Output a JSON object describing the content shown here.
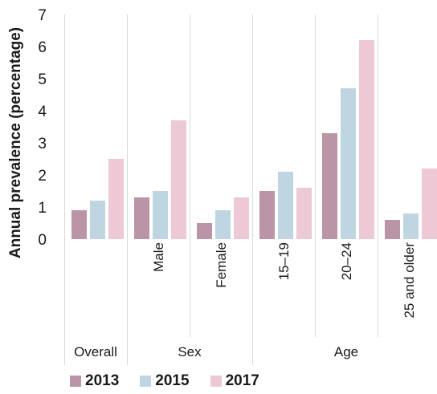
{
  "chart_data": {
    "type": "bar",
    "ylabel": "Annual prevalence (percentage)",
    "ylim": [
      0,
      7
    ],
    "yticks": [
      0,
      1,
      2,
      3,
      4,
      5,
      6,
      7
    ],
    "grid": false,
    "legend_position": "bottom",
    "categories": [
      "Overall",
      "Male",
      "Female",
      "15–19",
      "20–24",
      "25 and older"
    ],
    "rotated_category_labels": [
      "",
      "Male",
      "Female",
      "15–19",
      "20–24",
      "25 and older"
    ],
    "groups": [
      {
        "label": "Overall",
        "span": 1
      },
      {
        "label": "Sex",
        "span": 2
      },
      {
        "label": "Age",
        "span": 3
      }
    ],
    "series": [
      {
        "name": "2013",
        "color": "#b995a5",
        "values": [
          0.9,
          1.3,
          0.5,
          1.5,
          3.3,
          0.6
        ]
      },
      {
        "name": "2015",
        "color": "#bfd5e1",
        "values": [
          1.2,
          1.5,
          0.9,
          2.1,
          4.7,
          0.8
        ]
      },
      {
        "name": "2017",
        "color": "#ecc9d5",
        "values": [
          2.5,
          3.7,
          1.3,
          1.6,
          6.2,
          2.2
        ]
      }
    ]
  }
}
